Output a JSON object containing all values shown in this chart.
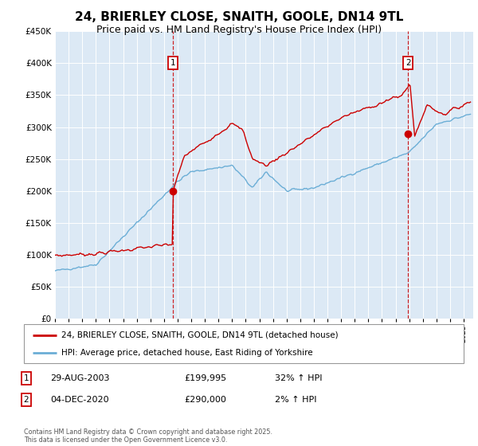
{
  "title": "24, BRIERLEY CLOSE, SNAITH, GOOLE, DN14 9TL",
  "subtitle": "Price paid vs. HM Land Registry's House Price Index (HPI)",
  "title_fontsize": 11,
  "subtitle_fontsize": 9,
  "background_color": "#ffffff",
  "plot_bg_color": "#dce9f5",
  "grid_color": "#ffffff",
  "hpi_color": "#6baed6",
  "price_color": "#cc0000",
  "ylim": [
    0,
    450000
  ],
  "yticks": [
    0,
    50000,
    100000,
    150000,
    200000,
    250000,
    300000,
    350000,
    400000,
    450000
  ],
  "xlim_start": 1995.0,
  "xlim_end": 2025.7,
  "transaction1_x": 2003.66,
  "transaction1_y": 199995,
  "transaction1_label": "1",
  "transaction2_x": 2020.92,
  "transaction2_y": 290000,
  "transaction2_label": "2",
  "vline_color": "#cc0000",
  "marker_color": "#cc0000",
  "legend_price_label": "24, BRIERLEY CLOSE, SNAITH, GOOLE, DN14 9TL (detached house)",
  "legend_hpi_label": "HPI: Average price, detached house, East Riding of Yorkshire",
  "annotation1_date": "29-AUG-2003",
  "annotation1_price": "£199,995",
  "annotation1_hpi": "32% ↑ HPI",
  "annotation2_date": "04-DEC-2020",
  "annotation2_price": "£290,000",
  "annotation2_hpi": "2% ↑ HPI",
  "footer_text": "Contains HM Land Registry data © Crown copyright and database right 2025.\nThis data is licensed under the Open Government Licence v3.0."
}
